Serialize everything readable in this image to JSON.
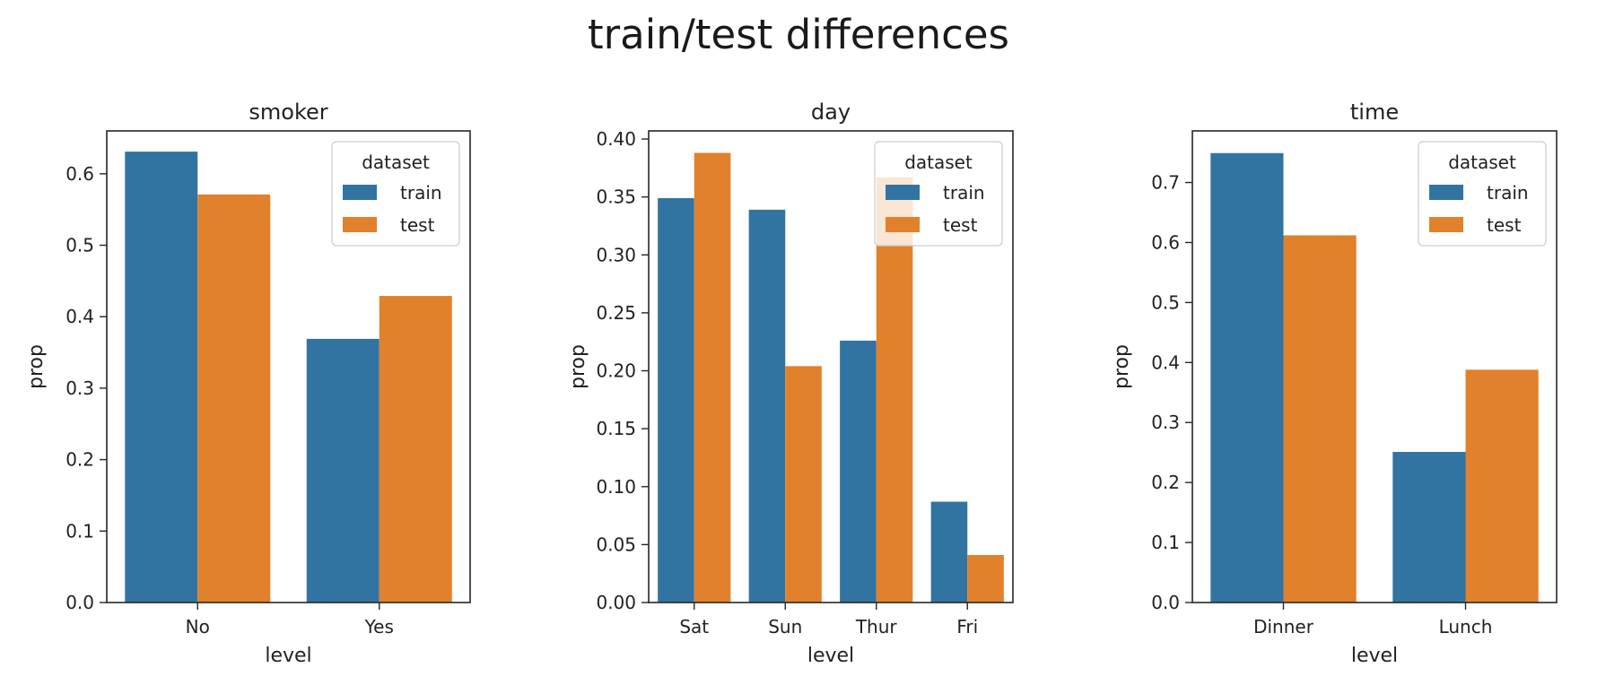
{
  "figure": {
    "title": "train/test differences"
  },
  "colors": {
    "train": "#3274a1",
    "test": "#e1812c",
    "axis": "#262626",
    "background": "#ffffff"
  },
  "chart_data": [
    {
      "type": "bar",
      "title": "smoker",
      "xlabel": "level",
      "ylabel": "prop",
      "categories": [
        "No",
        "Yes"
      ],
      "series": [
        {
          "name": "train",
          "values": [
            0.631,
            0.369
          ]
        },
        {
          "name": "test",
          "values": [
            0.571,
            0.429
          ]
        }
      ],
      "ylim": [
        0,
        0.66
      ],
      "yticks": [
        0.0,
        0.1,
        0.2,
        0.3,
        0.4,
        0.5,
        0.6
      ],
      "yticklabels": [
        "0.0",
        "0.1",
        "0.2",
        "0.3",
        "0.4",
        "0.5",
        "0.6"
      ],
      "legend": {
        "title": "dataset",
        "location": "upper right",
        "entries": [
          "train",
          "test"
        ]
      },
      "grid": false
    },
    {
      "type": "bar",
      "title": "day",
      "xlabel": "level",
      "ylabel": "prop",
      "categories": [
        "Sat",
        "Sun",
        "Thur",
        "Fri"
      ],
      "series": [
        {
          "name": "train",
          "values": [
            0.349,
            0.339,
            0.226,
            0.087
          ]
        },
        {
          "name": "test",
          "values": [
            0.388,
            0.204,
            0.367,
            0.041
          ]
        }
      ],
      "ylim": [
        0,
        0.407
      ],
      "yticks": [
        0.0,
        0.05,
        0.1,
        0.15,
        0.2,
        0.25,
        0.3,
        0.35,
        0.4
      ],
      "yticklabels": [
        "0.00",
        "0.05",
        "0.10",
        "0.15",
        "0.20",
        "0.25",
        "0.30",
        "0.35",
        "0.40"
      ],
      "legend": {
        "title": "dataset",
        "location": "upper right",
        "entries": [
          "train",
          "test"
        ]
      },
      "grid": false
    },
    {
      "type": "bar",
      "title": "time",
      "xlabel": "level",
      "ylabel": "prop",
      "categories": [
        "Dinner",
        "Lunch"
      ],
      "series": [
        {
          "name": "train",
          "values": [
            0.749,
            0.251
          ]
        },
        {
          "name": "test",
          "values": [
            0.612,
            0.388
          ]
        }
      ],
      "ylim": [
        0,
        0.786
      ],
      "yticks": [
        0.0,
        0.1,
        0.2,
        0.3,
        0.4,
        0.5,
        0.6,
        0.7
      ],
      "yticklabels": [
        "0.0",
        "0.1",
        "0.2",
        "0.3",
        "0.4",
        "0.5",
        "0.6",
        "0.7"
      ],
      "legend": {
        "title": "dataset",
        "location": "upper right",
        "entries": [
          "train",
          "test"
        ]
      },
      "grid": false
    }
  ]
}
